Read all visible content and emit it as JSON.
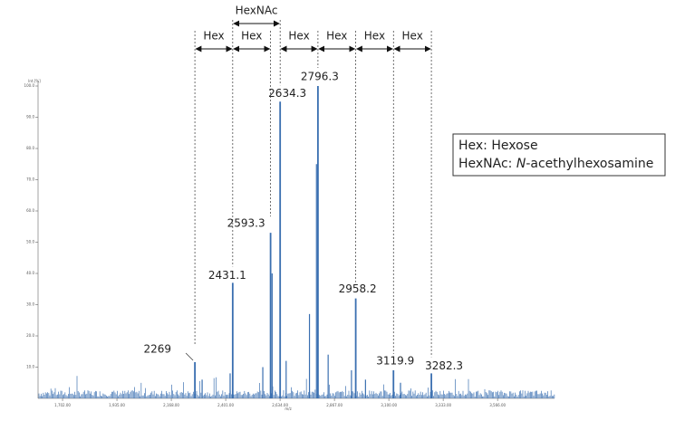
{
  "chart_data": {
    "type": "spectrum",
    "x": [
      2269.0,
      2431.1,
      2593.3,
      2634.3,
      2796.3,
      2958.2,
      3119.9,
      3282.3
    ],
    "values": [
      11.6,
      37,
      53,
      95,
      100,
      32,
      9,
      8
    ],
    "color": "#3a6fb0",
    "xlim": [
      1597,
      3810
    ],
    "ylim": [
      0,
      100
    ],
    "xticks": [
      {
        "value": 1702,
        "label": "1,702.00"
      },
      {
        "value": 1935,
        "label": "1,935.00"
      },
      {
        "value": 2168,
        "label": "2,168.00"
      },
      {
        "value": 2401,
        "label": "2,401.00"
      },
      {
        "value": 2634,
        "label": "2,634.00"
      },
      {
        "value": 2867,
        "label": "2,867.00"
      },
      {
        "value": 3100,
        "label": "3,100.00"
      },
      {
        "value": 3333,
        "label": "3,333.00"
      },
      {
        "value": 3566,
        "label": "3,566.00"
      }
    ],
    "yticks": [
      {
        "value": 10,
        "label": "10.0"
      },
      {
        "value": 20,
        "label": "20.0"
      },
      {
        "value": 30,
        "label": "30.0"
      },
      {
        "value": 40,
        "label": "40.0"
      },
      {
        "value": 50,
        "label": "50.0"
      },
      {
        "value": 60,
        "label": "60.0"
      },
      {
        "value": 70,
        "label": "70.0"
      },
      {
        "value": 80,
        "label": "80.0"
      },
      {
        "value": 90,
        "label": "90.0"
      },
      {
        "value": 100,
        "label": "100.0"
      }
    ],
    "y_label": "Int.[%]",
    "x_label": "m/z",
    "annotations": [
      "Hex",
      "Hex",
      "HexNAc",
      "Hex",
      "Hex",
      "Hex",
      "Hex"
    ],
    "legend": [
      [
        "Hex: Hexose"
      ],
      [
        "HexNAc: ",
        "N",
        "-acethylhexosamine"
      ]
    ]
  }
}
